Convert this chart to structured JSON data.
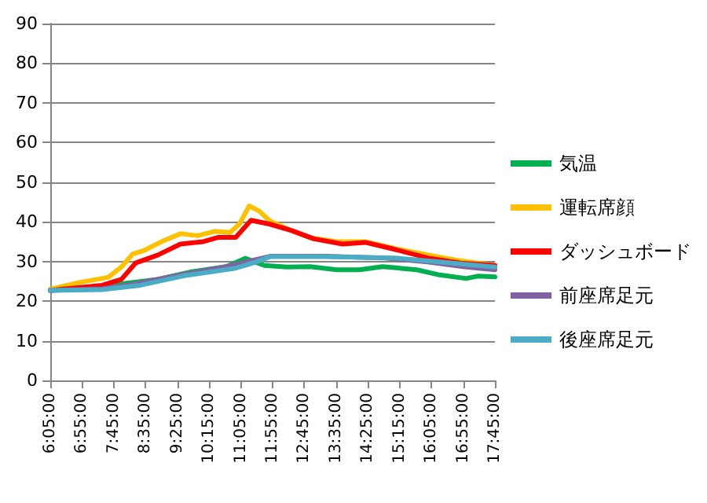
{
  "chart_data": {
    "type": "line",
    "legend": "right",
    "grid": "y",
    "marker": "none",
    "line_style": "solid",
    "xlim": [
      6.083333,
      17.75
    ],
    "ylim": [
      0,
      90
    ],
    "yticks": [
      0,
      10,
      20,
      30,
      40,
      50,
      60,
      70,
      80,
      90
    ],
    "xticks": [
      {
        "value": 6.083333,
        "label": "6:05:00"
      },
      {
        "value": 6.916667,
        "label": "6:55:00"
      },
      {
        "value": 7.75,
        "label": "7:45:00"
      },
      {
        "value": 8.583333,
        "label": "8:35:00"
      },
      {
        "value": 9.416667,
        "label": "9:25:00"
      },
      {
        "value": 10.25,
        "label": "10:15:00"
      },
      {
        "value": 11.083333,
        "label": "11:05:00"
      },
      {
        "value": 11.916667,
        "label": "11:55:00"
      },
      {
        "value": 12.75,
        "label": "12:45:00"
      },
      {
        "value": 13.583333,
        "label": "13:35:00"
      },
      {
        "value": 14.416667,
        "label": "14:25:00"
      },
      {
        "value": 15.25,
        "label": "15:15:00"
      },
      {
        "value": 16.083333,
        "label": "16:05:00"
      },
      {
        "value": 16.916667,
        "label": "16:55:00"
      },
      {
        "value": 17.75,
        "label": "17:45:00"
      }
    ],
    "series": [
      {
        "name": "気温",
        "color": "#00b050",
        "x": [
          6.083333,
          7.45,
          8.32,
          8.9,
          9.8,
          10.7,
          11.2,
          11.7,
          12.3,
          12.9,
          13.6,
          14.2,
          14.8,
          15.7,
          16.3,
          17.0,
          17.3,
          17.75
        ],
        "values": [
          22.7,
          23.8,
          24.8,
          25.5,
          27.4,
          28.7,
          30.8,
          29,
          28.6,
          28.7,
          27.9,
          27.9,
          28.7,
          27.9,
          26.6,
          25.7,
          26.3,
          26.1
        ]
      },
      {
        "name": "運転席顔",
        "color": "#ffc000",
        "x": [
          6.083333,
          6.85,
          7.6,
          7.95,
          8.25,
          8.55,
          9.05,
          9.5,
          9.95,
          10.4,
          10.8,
          11.05,
          11.3,
          11.55,
          11.85,
          12.45,
          12.9,
          13.6,
          14.35,
          15.1,
          15.98,
          16.7,
          17.75
        ],
        "values": [
          23,
          24.7,
          26,
          28.6,
          31.9,
          32.8,
          35.2,
          37,
          36.5,
          37.6,
          37.3,
          39.5,
          44,
          42.8,
          40.2,
          37.6,
          36,
          35,
          35,
          33.3,
          31.7,
          30.4,
          29
        ]
      },
      {
        "name": "ダッシュボード",
        "color": "#ff0000",
        "x": [
          6.083333,
          7.45,
          7.95,
          8.32,
          8.9,
          9.5,
          10.1,
          10.5,
          10.95,
          11.35,
          11.85,
          12.45,
          13.0,
          13.75,
          14.35,
          15.1,
          15.98,
          16.85,
          17.75
        ],
        "values": [
          22.7,
          24,
          25.5,
          29.6,
          31.6,
          34.4,
          35,
          36.1,
          36.1,
          40.4,
          39.4,
          37.7,
          35.7,
          34.4,
          34.8,
          33.1,
          30.9,
          29.6,
          29
        ]
      },
      {
        "name": "前座席足元",
        "color": "#8064a2",
        "x": [
          6.083333,
          7.45,
          8.32,
          9.5,
          10.7,
          11.4,
          11.85,
          13.3,
          14.8,
          15.98,
          17.0,
          17.75
        ],
        "values": [
          22.7,
          23.1,
          24.4,
          26.6,
          28.7,
          30.3,
          31.3,
          31.3,
          30.9,
          29.9,
          28.6,
          27.9
        ]
      },
      {
        "name": "後座席足元",
        "color": "#4bacc6",
        "x": [
          6.083333,
          7.45,
          8.45,
          9.6,
          10.95,
          11.4,
          11.85,
          13.3,
          15.1,
          16.3,
          17.75
        ],
        "values": [
          22.7,
          22.9,
          24,
          26.4,
          28.3,
          29.6,
          31.2,
          31.2,
          30.9,
          29.9,
          28.6
        ]
      }
    ]
  }
}
